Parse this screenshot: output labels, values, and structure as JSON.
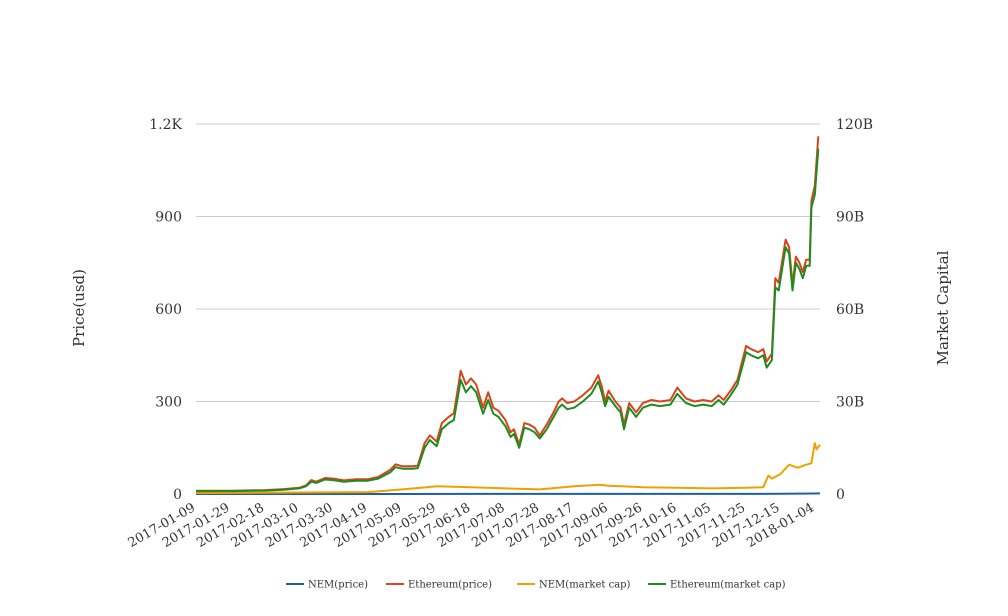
{
  "chart_data": {
    "type": "line",
    "title": "",
    "x_axis": {
      "type": "date",
      "range": [
        "2017-01-09",
        "2018-01-07"
      ],
      "tick_labels": [
        "2017-01-09",
        "2017-01-29",
        "2017-02-18",
        "2017-03-10",
        "2017-03-30",
        "2017-04-19",
        "2017-05-09",
        "2017-05-29",
        "2017-06-18",
        "2017-07-08",
        "2017-07-28",
        "2017-08-17",
        "2017-09-06",
        "2017-09-26",
        "2017-10-16",
        "2017-11-05",
        "2017-11-25",
        "2017-12-15",
        "2018-01-04"
      ]
    },
    "y_axis_left": {
      "label": "Price(usd)",
      "ylim": [
        0,
        1200
      ],
      "ticks": [
        0,
        300,
        600,
        900,
        1200
      ],
      "tick_labels": [
        "0",
        "300",
        "600",
        "900",
        "1.2K"
      ]
    },
    "y_axis_right": {
      "label": "Market Capital",
      "ylim": [
        0,
        120000000000
      ],
      "ticks": [
        0,
        30000000000,
        60000000000,
        90000000000,
        120000000000
      ],
      "tick_labels": [
        "0",
        "30B",
        "60B",
        "90B",
        "120B"
      ]
    },
    "grid": true,
    "legend": {
      "placement": "bottom-center"
    },
    "series": [
      {
        "name": "NEM(price)",
        "axis": "left",
        "color": "#1f5fa6",
        "points": [
          [
            "2017-01-09",
            0.004
          ],
          [
            "2017-03-10",
            0.01
          ],
          [
            "2017-05-09",
            0.1
          ],
          [
            "2017-06-18",
            0.25
          ],
          [
            "2017-08-17",
            0.3
          ],
          [
            "2017-10-16",
            0.2
          ],
          [
            "2017-11-25",
            0.25
          ],
          [
            "2017-12-15",
            0.6
          ],
          [
            "2018-01-04",
            1.6
          ],
          [
            "2018-01-07",
            1.9
          ]
        ]
      },
      {
        "name": "Ethereum(price)",
        "axis": "left",
        "color": "#d8441c",
        "points": [
          [
            "2017-01-09",
            10.5
          ],
          [
            "2017-01-29",
            10.6
          ],
          [
            "2017-02-18",
            12.5
          ],
          [
            "2017-03-01",
            16
          ],
          [
            "2017-03-10",
            20
          ],
          [
            "2017-03-14",
            28
          ],
          [
            "2017-03-17",
            45
          ],
          [
            "2017-03-20",
            40
          ],
          [
            "2017-03-25",
            52
          ],
          [
            "2017-03-30",
            50
          ],
          [
            "2017-04-05",
            44
          ],
          [
            "2017-04-12",
            48
          ],
          [
            "2017-04-19",
            48
          ],
          [
            "2017-04-25",
            55
          ],
          [
            "2017-05-02",
            78
          ],
          [
            "2017-05-05",
            96
          ],
          [
            "2017-05-09",
            90
          ],
          [
            "2017-05-15",
            90
          ],
          [
            "2017-05-18",
            92
          ],
          [
            "2017-05-22",
            165
          ],
          [
            "2017-05-25",
            190
          ],
          [
            "2017-05-29",
            170
          ],
          [
            "2017-06-01",
            230
          ],
          [
            "2017-06-05",
            250
          ],
          [
            "2017-06-08",
            262
          ],
          [
            "2017-06-10",
            330
          ],
          [
            "2017-06-12",
            400
          ],
          [
            "2017-06-15",
            355
          ],
          [
            "2017-06-18",
            375
          ],
          [
            "2017-06-21",
            355
          ],
          [
            "2017-06-25",
            280
          ],
          [
            "2017-06-28",
            330
          ],
          [
            "2017-07-01",
            280
          ],
          [
            "2017-07-04",
            270
          ],
          [
            "2017-07-08",
            240
          ],
          [
            "2017-07-11",
            200
          ],
          [
            "2017-07-13",
            210
          ],
          [
            "2017-07-16",
            160
          ],
          [
            "2017-07-19",
            230
          ],
          [
            "2017-07-22",
            225
          ],
          [
            "2017-07-25",
            215
          ],
          [
            "2017-07-28",
            190
          ],
          [
            "2017-08-01",
            225
          ],
          [
            "2017-08-05",
            265
          ],
          [
            "2017-08-08",
            300
          ],
          [
            "2017-08-10",
            310
          ],
          [
            "2017-08-13",
            295
          ],
          [
            "2017-08-17",
            300
          ],
          [
            "2017-08-22",
            320
          ],
          [
            "2017-08-27",
            345
          ],
          [
            "2017-08-31",
            385
          ],
          [
            "2017-09-02",
            350
          ],
          [
            "2017-09-04",
            300
          ],
          [
            "2017-09-06",
            335
          ],
          [
            "2017-09-10",
            300
          ],
          [
            "2017-09-13",
            280
          ],
          [
            "2017-09-15",
            225
          ],
          [
            "2017-09-18",
            295
          ],
          [
            "2017-09-22",
            265
          ],
          [
            "2017-09-26",
            295
          ],
          [
            "2017-10-01",
            305
          ],
          [
            "2017-10-06",
            300
          ],
          [
            "2017-10-12",
            305
          ],
          [
            "2017-10-16",
            345
          ],
          [
            "2017-10-21",
            310
          ],
          [
            "2017-10-26",
            300
          ],
          [
            "2017-10-31",
            305
          ],
          [
            "2017-11-05",
            300
          ],
          [
            "2017-11-09",
            320
          ],
          [
            "2017-11-12",
            305
          ],
          [
            "2017-11-16",
            335
          ],
          [
            "2017-11-20",
            370
          ],
          [
            "2017-11-25",
            480
          ],
          [
            "2017-11-28",
            470
          ],
          [
            "2017-12-02",
            460
          ],
          [
            "2017-12-05",
            470
          ],
          [
            "2017-12-07",
            430
          ],
          [
            "2017-12-10",
            455
          ],
          [
            "2017-12-12",
            700
          ],
          [
            "2017-12-14",
            685
          ],
          [
            "2017-12-18",
            825
          ],
          [
            "2017-12-20",
            800
          ],
          [
            "2017-12-22",
            680
          ],
          [
            "2017-12-24",
            770
          ],
          [
            "2017-12-26",
            750
          ],
          [
            "2017-12-28",
            720
          ],
          [
            "2017-12-30",
            760
          ],
          [
            "2018-01-01",
            760
          ],
          [
            "2018-01-02",
            950
          ],
          [
            "2018-01-04",
            1000
          ],
          [
            "2018-01-06",
            1160
          ]
        ]
      },
      {
        "name": "NEM(market cap)",
        "axis": "right",
        "color": "#f0a000",
        "points": [
          [
            "2017-01-09",
            300000000
          ],
          [
            "2017-03-10",
            500000000
          ],
          [
            "2017-04-19",
            600000000
          ],
          [
            "2017-05-09",
            1500000000
          ],
          [
            "2017-05-20",
            2000000000
          ],
          [
            "2017-05-29",
            2500000000
          ],
          [
            "2017-06-18",
            2200000000
          ],
          [
            "2017-07-08",
            1800000000
          ],
          [
            "2017-07-28",
            1500000000
          ],
          [
            "2017-08-17",
            2500000000
          ],
          [
            "2017-09-01",
            3000000000
          ],
          [
            "2017-09-06",
            2700000000
          ],
          [
            "2017-09-26",
            2200000000
          ],
          [
            "2017-10-16",
            2000000000
          ],
          [
            "2017-11-05",
            1800000000
          ],
          [
            "2017-11-25",
            2000000000
          ],
          [
            "2017-12-05",
            2200000000
          ],
          [
            "2017-12-08",
            6000000000
          ],
          [
            "2017-12-10",
            5000000000
          ],
          [
            "2017-12-15",
            6500000000
          ],
          [
            "2017-12-20",
            9500000000
          ],
          [
            "2017-12-25",
            8500000000
          ],
          [
            "2017-12-30",
            9500000000
          ],
          [
            "2018-01-02",
            10000000000
          ],
          [
            "2018-01-04",
            16500000000
          ],
          [
            "2018-01-05",
            14500000000
          ],
          [
            "2018-01-07",
            16000000000
          ]
        ]
      },
      {
        "name": "Ethereum(market cap)",
        "axis": "right",
        "color": "#1e8c1e",
        "points": [
          [
            "2017-01-09",
            920000000
          ],
          [
            "2017-01-29",
            950000000
          ],
          [
            "2017-02-18",
            1100000000
          ],
          [
            "2017-03-01",
            1400000000
          ],
          [
            "2017-03-10",
            1800000000
          ],
          [
            "2017-03-14",
            2500000000
          ],
          [
            "2017-03-17",
            4000000000
          ],
          [
            "2017-03-20",
            3600000000
          ],
          [
            "2017-03-25",
            4700000000
          ],
          [
            "2017-03-30",
            4500000000
          ],
          [
            "2017-04-05",
            4000000000
          ],
          [
            "2017-04-12",
            4300000000
          ],
          [
            "2017-04-19",
            4300000000
          ],
          [
            "2017-04-25",
            5000000000
          ],
          [
            "2017-05-02",
            7000000000
          ],
          [
            "2017-05-05",
            8700000000
          ],
          [
            "2017-05-09",
            8200000000
          ],
          [
            "2017-05-15",
            8200000000
          ],
          [
            "2017-05-18",
            8400000000
          ],
          [
            "2017-05-22",
            15000000000
          ],
          [
            "2017-05-25",
            17500000000
          ],
          [
            "2017-05-29",
            15500000000
          ],
          [
            "2017-06-01",
            21000000000
          ],
          [
            "2017-06-05",
            23000000000
          ],
          [
            "2017-06-08",
            24000000000
          ],
          [
            "2017-06-10",
            30500000000
          ],
          [
            "2017-06-12",
            37000000000
          ],
          [
            "2017-06-15",
            33000000000
          ],
          [
            "2017-06-18",
            35000000000
          ],
          [
            "2017-06-21",
            33000000000
          ],
          [
            "2017-06-25",
            26000000000
          ],
          [
            "2017-06-28",
            30500000000
          ],
          [
            "2017-07-01",
            26000000000
          ],
          [
            "2017-07-04",
            25000000000
          ],
          [
            "2017-07-08",
            22000000000
          ],
          [
            "2017-07-11",
            18500000000
          ],
          [
            "2017-07-13",
            19500000000
          ],
          [
            "2017-07-16",
            15000000000
          ],
          [
            "2017-07-19",
            21500000000
          ],
          [
            "2017-07-22",
            21000000000
          ],
          [
            "2017-07-25",
            20000000000
          ],
          [
            "2017-07-28",
            18000000000
          ],
          [
            "2017-08-01",
            21000000000
          ],
          [
            "2017-08-05",
            25000000000
          ],
          [
            "2017-08-08",
            28000000000
          ],
          [
            "2017-08-10",
            29000000000
          ],
          [
            "2017-08-13",
            27500000000
          ],
          [
            "2017-08-17",
            28000000000
          ],
          [
            "2017-08-22",
            30000000000
          ],
          [
            "2017-08-27",
            32500000000
          ],
          [
            "2017-08-31",
            36500000000
          ],
          [
            "2017-09-02",
            33000000000
          ],
          [
            "2017-09-04",
            28500000000
          ],
          [
            "2017-09-06",
            31500000000
          ],
          [
            "2017-09-10",
            28500000000
          ],
          [
            "2017-09-13",
            26500000000
          ],
          [
            "2017-09-15",
            21000000000
          ],
          [
            "2017-09-18",
            28000000000
          ],
          [
            "2017-09-22",
            25000000000
          ],
          [
            "2017-09-26",
            28000000000
          ],
          [
            "2017-10-01",
            29000000000
          ],
          [
            "2017-10-06",
            28500000000
          ],
          [
            "2017-10-12",
            29000000000
          ],
          [
            "2017-10-16",
            32500000000
          ],
          [
            "2017-10-21",
            29500000000
          ],
          [
            "2017-10-26",
            28500000000
          ],
          [
            "2017-10-31",
            29000000000
          ],
          [
            "2017-11-05",
            28500000000
          ],
          [
            "2017-11-09",
            30500000000
          ],
          [
            "2017-11-12",
            29000000000
          ],
          [
            "2017-11-16",
            32000000000
          ],
          [
            "2017-11-20",
            35500000000
          ],
          [
            "2017-11-25",
            46000000000
          ],
          [
            "2017-11-28",
            45000000000
          ],
          [
            "2017-12-02",
            44000000000
          ],
          [
            "2017-12-05",
            45000000000
          ],
          [
            "2017-12-07",
            41000000000
          ],
          [
            "2017-12-10",
            43500000000
          ],
          [
            "2017-12-12",
            67000000000
          ],
          [
            "2017-12-14",
            66000000000
          ],
          [
            "2017-12-18",
            80000000000
          ],
          [
            "2017-12-20",
            78000000000
          ],
          [
            "2017-12-22",
            66000000000
          ],
          [
            "2017-12-24",
            75000000000
          ],
          [
            "2017-12-26",
            73000000000
          ],
          [
            "2017-12-28",
            70000000000
          ],
          [
            "2017-12-30",
            74000000000
          ],
          [
            "2018-01-01",
            74000000000
          ],
          [
            "2018-01-02",
            93000000000
          ],
          [
            "2018-01-04",
            97000000000
          ],
          [
            "2018-01-06",
            112000000000
          ]
        ]
      }
    ]
  }
}
